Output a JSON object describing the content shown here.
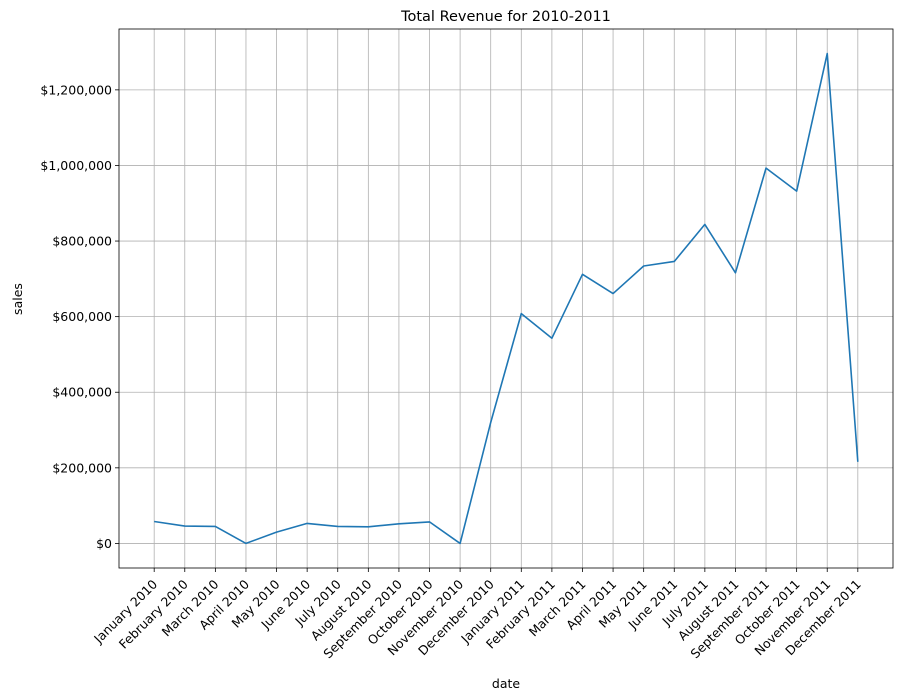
{
  "chart_data": {
    "type": "line",
    "title": "Total Revenue for 2010-2011",
    "xlabel": "date",
    "ylabel": "sales",
    "categories": [
      "January 2010",
      "February 2010",
      "March 2010",
      "April 2010",
      "May 2010",
      "June 2010",
      "July 2010",
      "August 2010",
      "September 2010",
      "October 2010",
      "November 2010",
      "December 2010",
      "January 2011",
      "February 2011",
      "March 2011",
      "April 2011",
      "May 2011",
      "June 2011",
      "July 2011",
      "August 2011",
      "September 2011",
      "October 2011",
      "November 2011",
      "December 2011"
    ],
    "series": [
      {
        "values": [
          58000,
          46000,
          45000,
          0,
          30000,
          53000,
          45000,
          44000,
          52000,
          57000,
          0,
          320000,
          608000,
          543000,
          712000,
          661000,
          734000,
          746000,
          844000,
          716000,
          993000,
          932000,
          1296000,
          216000
        ]
      }
    ],
    "yticks": [
      0,
      200000,
      400000,
      600000,
      800000,
      1000000,
      1200000
    ],
    "ytick_labels": [
      "$0",
      "$200,000",
      "$400,000",
      "$600,000",
      "$800,000",
      "$1,000,000",
      "$1,200,000"
    ],
    "ylim": [
      -65000,
      1361000
    ],
    "grid": true,
    "colors": {
      "line": "#1f77b4"
    }
  }
}
